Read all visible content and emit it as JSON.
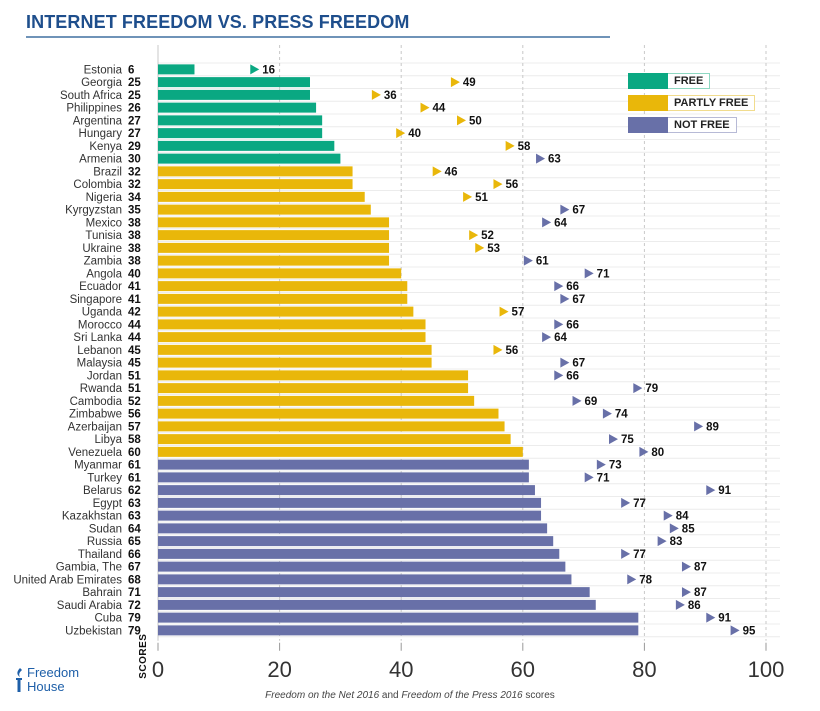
{
  "header": {
    "title": "INTERNET FREEDOM VS. PRESS FREEDOM"
  },
  "legend": [
    {
      "label": "FREE",
      "color": "#0aa882",
      "border": "#8ed8c2"
    },
    {
      "label": "PARTLY FREE",
      "color": "#e9b70a",
      "border": "#f1dc8e"
    },
    {
      "label": "NOT FREE",
      "color": "#6870a8",
      "border": "#b7bad6"
    }
  ],
  "footer": {
    "logo_line1": "Freedom",
    "logo_line2": "House",
    "caption_part1": "Freedom on the Net 2016",
    "caption_part2": " and ",
    "caption_part3": "Freedom of the Press 2016",
    "caption_part4": " scores"
  },
  "chart_data": {
    "type": "bar",
    "orientation": "horizontal",
    "title": "INTERNET FREEDOM VS. PRESS FREEDOM",
    "xlabel": "SCORES",
    "xlim": [
      0,
      100
    ],
    "xticks": [
      0,
      20,
      40,
      60,
      80,
      100
    ],
    "grid": true,
    "legend_position": "top-right",
    "series_names": [
      "Freedom on the Net 2016 (bar)",
      "Freedom of the Press 2016 (marker)"
    ],
    "status_colors": {
      "free": "#0aa882",
      "partly": "#e9b70a",
      "not": "#6870a8"
    },
    "categories": [
      "Estonia",
      "Georgia",
      "South Africa",
      "Philippines",
      "Argentina",
      "Hungary",
      "Kenya",
      "Armenia",
      "Brazil",
      "Colombia",
      "Nigeria",
      "Kyrgyzstan",
      "Mexico",
      "Tunisia",
      "Ukraine",
      "Zambia",
      "Angola",
      "Ecuador",
      "Singapore",
      "Uganda",
      "Morocco",
      "Sri Lanka",
      "Lebanon",
      "Malaysia",
      "Jordan",
      "Rwanda",
      "Cambodia",
      "Zimbabwe",
      "Azerbaijan",
      "Libya",
      "Venezuela",
      "Myanmar",
      "Turkey",
      "Belarus",
      "Egypt",
      "Kazakhstan",
      "Sudan",
      "Russia",
      "Thailand",
      "Gambia, The",
      "United Arab Emirates",
      "Bahrain",
      "Saudi Arabia",
      "Cuba",
      "Uzbekistan"
    ],
    "net_scores": [
      6,
      25,
      25,
      26,
      27,
      27,
      29,
      30,
      32,
      32,
      34,
      35,
      38,
      38,
      38,
      38,
      40,
      41,
      41,
      42,
      44,
      44,
      45,
      45,
      51,
      51,
      52,
      56,
      57,
      58,
      60,
      61,
      61,
      62,
      63,
      63,
      64,
      65,
      66,
      67,
      68,
      71,
      72,
      79,
      79
    ],
    "press_scores": [
      16,
      49,
      36,
      44,
      50,
      40,
      58,
      63,
      46,
      56,
      51,
      67,
      64,
      52,
      53,
      61,
      71,
      66,
      67,
      57,
      66,
      64,
      56,
      67,
      66,
      79,
      69,
      74,
      89,
      75,
      80,
      73,
      71,
      91,
      77,
      84,
      85,
      83,
      77,
      87,
      78,
      87,
      86,
      91,
      95
    ]
  }
}
